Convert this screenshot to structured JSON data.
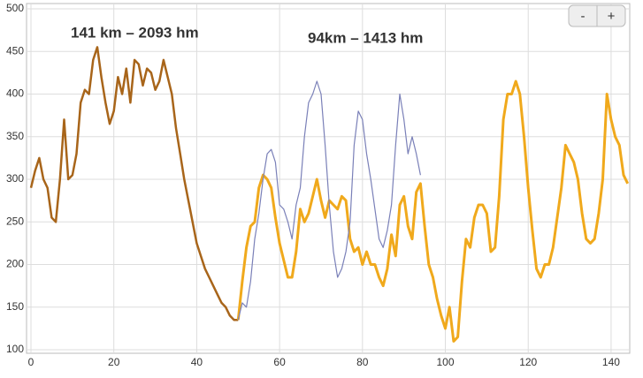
{
  "chart_data": {
    "type": "line",
    "annotations": [
      {
        "text": "141 km – 2093 hm",
        "color": "#f2a900"
      },
      {
        "text": "94km – 1413 hm",
        "color": "#8090a8"
      }
    ],
    "xlim": [
      0,
      144.5
    ],
    "xticks": [
      0,
      20,
      40,
      60,
      80,
      100,
      120,
      140
    ],
    "ylim": [
      100,
      500
    ],
    "yticks": [
      100,
      150,
      200,
      250,
      300,
      350,
      400,
      450,
      500
    ],
    "grid": true,
    "series": [
      {
        "color": "#a8651a",
        "width": 2.5,
        "x": [
          0,
          1,
          2,
          3,
          4,
          5,
          6,
          7,
          8,
          9,
          10,
          11,
          12,
          13,
          14,
          15,
          16,
          17,
          18,
          19,
          20,
          21,
          22,
          23,
          24,
          25,
          26,
          27,
          28,
          29,
          30,
          31,
          32,
          33,
          34,
          35,
          36,
          37,
          38,
          39,
          40,
          41,
          42,
          43,
          44,
          45,
          46,
          47,
          48,
          49,
          50
        ],
        "values": [
          290,
          310,
          325,
          300,
          290,
          255,
          250,
          300,
          370,
          300,
          305,
          330,
          390,
          405,
          400,
          440,
          455,
          420,
          390,
          365,
          380,
          420,
          400,
          430,
          390,
          440,
          435,
          410,
          430,
          425,
          405,
          415,
          440,
          420,
          400,
          360,
          330,
          300,
          275,
          250,
          225,
          210,
          195,
          185,
          175,
          165,
          155,
          150,
          140,
          135,
          135
        ]
      },
      {
        "color": "#f0a91c",
        "width": 3,
        "x": [
          50,
          51,
          52,
          53,
          54,
          55,
          56,
          57,
          58,
          59,
          60,
          61,
          62,
          63,
          64,
          65,
          66,
          67,
          68,
          69,
          70,
          71,
          72,
          73,
          74,
          75,
          76,
          77,
          78,
          79,
          80,
          81,
          82,
          83,
          84,
          85,
          86,
          87,
          88,
          89,
          90,
          91,
          92,
          93,
          94,
          95,
          96,
          97,
          98,
          99,
          100,
          101,
          102,
          103,
          104,
          105,
          106,
          107,
          108,
          109,
          110,
          111,
          112,
          113,
          114,
          115,
          116,
          117,
          118,
          119,
          120,
          121,
          122,
          123,
          124,
          125,
          126,
          127,
          128,
          129,
          130,
          131,
          132,
          133,
          134,
          135,
          136,
          137,
          138,
          139,
          140,
          141,
          142,
          143,
          144
        ],
        "values": [
          135,
          180,
          220,
          245,
          250,
          290,
          305,
          300,
          290,
          255,
          225,
          205,
          185,
          185,
          215,
          265,
          250,
          260,
          280,
          300,
          275,
          255,
          275,
          270,
          265,
          280,
          275,
          230,
          215,
          220,
          200,
          215,
          200,
          200,
          185,
          175,
          195,
          235,
          210,
          270,
          280,
          245,
          230,
          285,
          295,
          245,
          200,
          185,
          160,
          140,
          125,
          150,
          110,
          115,
          180,
          230,
          220,
          255,
          270,
          270,
          260,
          215,
          220,
          280,
          370,
          400,
          400,
          415,
          400,
          350,
          290,
          240,
          195,
          185,
          200,
          200,
          220,
          255,
          290,
          340,
          330,
          320,
          300,
          260,
          230,
          225,
          230,
          260,
          300,
          400,
          370,
          350,
          340,
          305,
          295
        ]
      },
      {
        "color": "#7a80b8",
        "width": 1.2,
        "x": [
          50,
          51,
          52,
          53,
          54,
          55,
          56,
          57,
          58,
          59,
          60,
          61,
          62,
          63,
          64,
          65,
          66,
          67,
          68,
          69,
          70,
          71,
          72,
          73,
          74,
          75,
          76,
          77,
          78,
          79,
          80,
          81,
          82,
          83,
          84,
          85,
          86,
          87,
          88,
          89,
          90,
          91,
          92,
          93,
          94
        ],
        "values": [
          135,
          155,
          150,
          180,
          230,
          260,
          300,
          330,
          335,
          320,
          270,
          265,
          250,
          230,
          270,
          290,
          350,
          390,
          400,
          415,
          400,
          340,
          270,
          215,
          185,
          195,
          215,
          250,
          340,
          380,
          370,
          330,
          300,
          265,
          230,
          220,
          240,
          270,
          340,
          400,
          370,
          330,
          350,
          330,
          305
        ]
      }
    ]
  },
  "controls": [
    "-",
    "+"
  ]
}
